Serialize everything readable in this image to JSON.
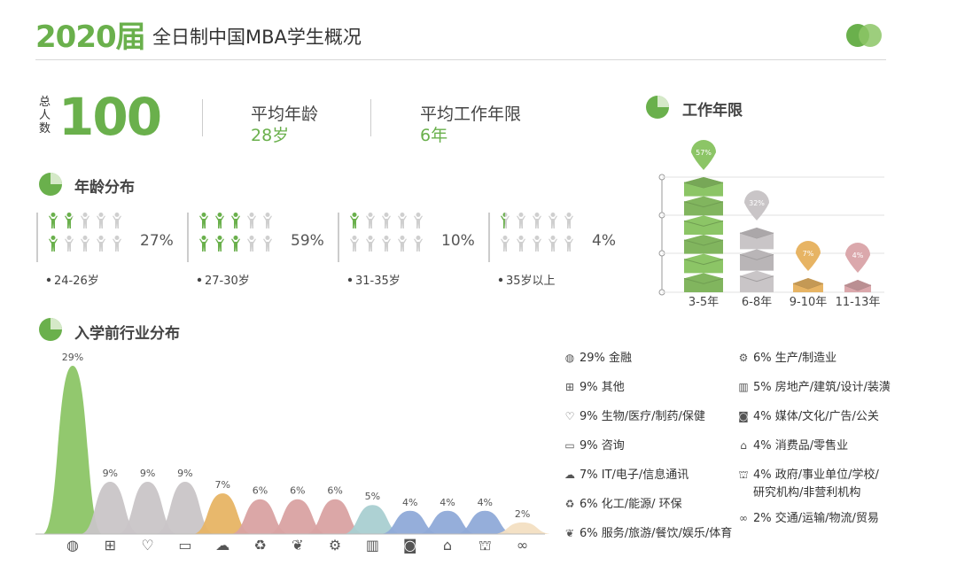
{
  "header": {
    "year": "2020届",
    "title": "全日制中国MBA学生概况"
  },
  "stats": {
    "total_label": "总人数",
    "total_value": "100",
    "avg_age_label": "平均年龄",
    "avg_age_value": "28岁",
    "avg_work_label": "平均工作年限",
    "avg_work_value": "6年"
  },
  "sections": {
    "age": "年龄分布",
    "work": "工作年限",
    "industry": "入学前行业分布"
  },
  "colors": {
    "green": "#6ab04c",
    "grey": "#c9c5c7",
    "orange": "#e7b464",
    "pink": "#d9a2a2",
    "teal": "#a9cfd1",
    "blue": "#8faad8",
    "cream": "#f3dfc2"
  },
  "chart_data": [
    {
      "type": "pictograph",
      "title": "年龄分布",
      "categories": [
        "24-26岁",
        "27-30岁",
        "31-35岁",
        "35岁以上"
      ],
      "values": [
        27,
        59,
        10,
        4
      ],
      "labels": [
        "27%",
        "59%",
        "10%",
        "4%"
      ],
      "icons_per_group": 10
    },
    {
      "type": "bar",
      "title": "工作年限",
      "categories": [
        "3-5年",
        "6-8年",
        "9-10年",
        "11-13年"
      ],
      "values": [
        57,
        32,
        7,
        4
      ],
      "labels": [
        "57%",
        "32%",
        "7%",
        "4%"
      ],
      "colors": [
        "#8cc566",
        "#c9c5c7",
        "#e7b464",
        "#dba8ac"
      ]
    },
    {
      "type": "area",
      "title": "入学前行业分布",
      "categories": [
        "金融",
        "其他",
        "生物/医疗/制药/保健",
        "咨询",
        "IT/电子/信息通讯",
        "化工/能源/ 环保",
        "服务/旅游/餐饮/娱乐/体育",
        "生产/制造业",
        "房地产/建筑/设计/装潢",
        "媒体/文化/广告/公关",
        "消费品/零售业",
        "政府/事业单位/学校/研究机构/非营利机构",
        "交通/运输/物流/贸易"
      ],
      "values": [
        29,
        9,
        9,
        9,
        7,
        6,
        6,
        6,
        5,
        4,
        4,
        4,
        2
      ],
      "labels": [
        "29%",
        "9%",
        "9%",
        "9%",
        "7%",
        "6%",
        "6%",
        "6%",
        "5%",
        "4%",
        "4%",
        "4%",
        "2%"
      ],
      "icons": [
        "globe-icon",
        "grid-icon",
        "heart-icon",
        "chat-icon",
        "cloud-icon",
        "recycle-icon",
        "handshake-icon",
        "gear-icon",
        "building-icon",
        "camera-icon",
        "store-icon",
        "government-icon",
        "link-icon"
      ],
      "icon_glyphs": [
        "◍",
        "⊞",
        "♡",
        "▭",
        "☁",
        "♻",
        "❦",
        "⚙",
        "▥",
        "◙",
        "⌂",
        "⛫",
        "∞"
      ],
      "colors": [
        "#8cc566",
        "#c9c5c7",
        "#c9c5c7",
        "#c9c5c7",
        "#e7b464",
        "#d9a2a2",
        "#d9a2a2",
        "#d9a2a2",
        "#a9cfd1",
        "#8faad8",
        "#8faad8",
        "#8faad8",
        "#f3dfc2"
      ]
    }
  ],
  "legend": {
    "left": [
      {
        "icon": "globe-icon",
        "glyph": "◍",
        "pct": "29%",
        "text": "金融"
      },
      {
        "icon": "grid-icon",
        "glyph": "⊞",
        "pct": "9%",
        "text": "其他"
      },
      {
        "icon": "heart-icon",
        "glyph": "♡",
        "pct": "9%",
        "text": "生物/医疗/制药/保健"
      },
      {
        "icon": "chat-icon",
        "glyph": "▭",
        "pct": "9%",
        "text": "咨询"
      },
      {
        "icon": "cloud-icon",
        "glyph": "☁",
        "pct": "7%",
        "text": "IT/电子/信息通讯"
      },
      {
        "icon": "recycle-icon",
        "glyph": "♻",
        "pct": "6%",
        "text": "化工/能源/ 环保"
      },
      {
        "icon": "handshake-icon",
        "glyph": "❦",
        "pct": "6%",
        "text": "服务/旅游/餐饮/娱乐/体育"
      }
    ],
    "right": [
      {
        "icon": "gear-icon",
        "glyph": "⚙",
        "pct": "6%",
        "text": "生产/制造业"
      },
      {
        "icon": "building-icon",
        "glyph": "▥",
        "pct": "5%",
        "text": "房地产/建筑/设计/装潢"
      },
      {
        "icon": "camera-icon",
        "glyph": "◙",
        "pct": "4%",
        "text": "媒体/文化/广告/公关"
      },
      {
        "icon": "store-icon",
        "glyph": "⌂",
        "pct": "4%",
        "text": "消费品/零售业"
      },
      {
        "icon": "government-icon",
        "glyph": "⛫",
        "pct": "4%",
        "text": "政府/事业单位/学校/",
        "text2": "研究机构/非营利机构"
      },
      {
        "icon": "link-icon",
        "glyph": "∞",
        "pct": "2%",
        "text": "交通/运输/物流/贸易"
      }
    ]
  }
}
